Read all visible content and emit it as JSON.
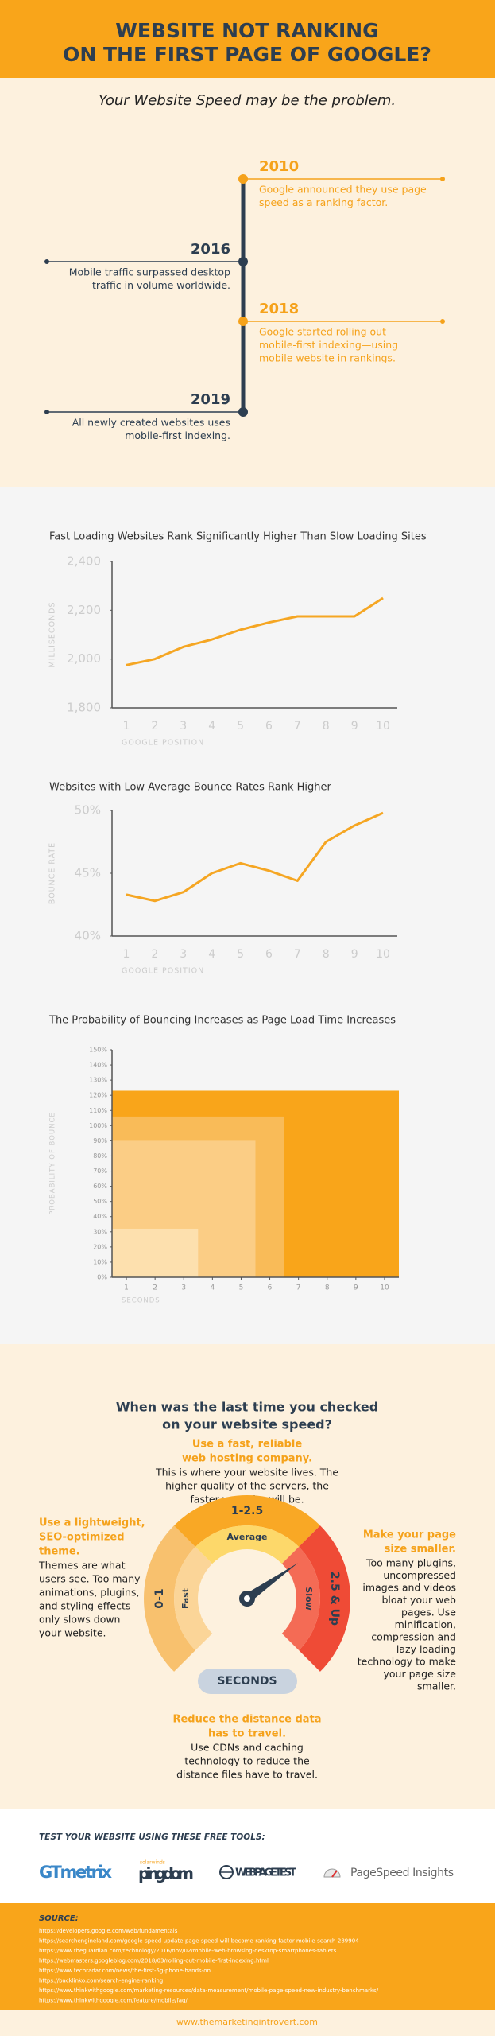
{
  "header": {
    "title": [
      "WEBSITE NOT RANKING",
      "ON THE FIRST PAGE OF GOOGLE?"
    ]
  },
  "intro": {
    "subtitle": "Your Website Speed may be the problem.",
    "timeline": [
      {
        "year": "2010",
        "text": [
          "Google announced they use page",
          "speed as a ranking factor."
        ]
      },
      {
        "year": "2016",
        "text": [
          "Mobile traffic surpassed desktop",
          "traffic in volume worldwide."
        ]
      },
      {
        "year": "2018",
        "text": [
          "Google started rolling out",
          "mobile-first indexing—using",
          "mobile website in rankings."
        ]
      },
      {
        "year": "2019",
        "text": [
          "All newly created websites uses",
          "mobile-first indexing."
        ]
      }
    ]
  },
  "chart_data": [
    {
      "type": "line",
      "title": "Fast Loading Websites Rank Significantly Higher Than Slow Loading Sites",
      "y_label": "MILLISECONDS",
      "x_label": "GOOGLE POSITION",
      "categories": [
        "1",
        "2",
        "3",
        "4",
        "5",
        "6",
        "7",
        "8",
        "9",
        "10"
      ],
      "values": [
        1975,
        2000,
        2050,
        2080,
        2120,
        2150,
        2175,
        2175,
        2175,
        2250
      ],
      "color": "#f5a623",
      "ylim": [
        1800,
        2400
      ],
      "yticks": [
        {
          "value": 1800,
          "label": "1,800"
        },
        {
          "value": 2000,
          "label": "2,000"
        },
        {
          "value": 2200,
          "label": "2,200"
        },
        {
          "value": 2400,
          "label": "2,400"
        }
      ],
      "grid": false
    },
    {
      "type": "line",
      "title": "Websites with Low Average Bounce Rates Rank Higher",
      "y_label": "BOUNCE RATE",
      "x_label": "GOOGLE POSITION",
      "categories": [
        "1",
        "2",
        "3",
        "4",
        "5",
        "6",
        "7",
        "8",
        "9",
        "10"
      ],
      "values": [
        43.3,
        42.8,
        43.5,
        45.0,
        45.8,
        45.2,
        44.4,
        47.5,
        48.8,
        49.8
      ],
      "color": "#f5a623",
      "ylim": [
        40,
        50
      ],
      "yticks": [
        {
          "value": 40,
          "label": "40%"
        },
        {
          "value": 45,
          "label": "45%"
        },
        {
          "value": 50,
          "label": "50%"
        }
      ],
      "grid": false
    },
    {
      "type": "bar",
      "title": "The Probability of Bouncing Increases as Page Load Time Increases",
      "y_label": "PROBABILITY OF BOUNCE",
      "x_label": "SECONDS",
      "x": [
        3,
        5,
        6,
        10
      ],
      "values": [
        32,
        90,
        106,
        123
      ],
      "colors": [
        "#fde0ae",
        "#fbcd85",
        "#f9bb58",
        "#f9a51a"
      ],
      "xlim": [
        0.5,
        10.5
      ],
      "xticks": [
        1,
        2,
        3,
        4,
        5,
        6,
        7,
        8,
        9,
        10
      ],
      "ylim": [
        0,
        150
      ],
      "yticks": [
        {
          "value": 0,
          "label": "0%"
        },
        {
          "value": 10,
          "label": "10%"
        },
        {
          "value": 20,
          "label": "20%"
        },
        {
          "value": 30,
          "label": "30%"
        },
        {
          "value": 40,
          "label": "40%"
        },
        {
          "value": 50,
          "label": "50%"
        },
        {
          "value": 60,
          "label": "60%"
        },
        {
          "value": 70,
          "label": "70%"
        },
        {
          "value": 80,
          "label": "80%"
        },
        {
          "value": 90,
          "label": "90%"
        },
        {
          "value": 100,
          "label": "100%"
        },
        {
          "value": 110,
          "label": "110%"
        },
        {
          "value": 120,
          "label": "120%"
        },
        {
          "value": 130,
          "label": "130%"
        },
        {
          "value": 140,
          "label": "140%"
        },
        {
          "value": 150,
          "label": "150%"
        }
      ],
      "grid": false
    }
  ],
  "speed": {
    "title": [
      "When was the last time you checked",
      "on your website speed?"
    ],
    "tips": [
      {
        "heading": [
          "Use a fast, reliable",
          "web hosting company."
        ],
        "body": [
          "This is where your website lives. The",
          "higher quality of the servers, the",
          "faster your site will be."
        ]
      },
      {
        "heading": [
          "Use a lightweight,",
          "SEO-optimized",
          "theme."
        ],
        "body": [
          "Themes are what",
          "users see. Too many",
          "animations, plugins,",
          "and styling effects",
          "only slows down",
          "your website."
        ]
      },
      {
        "heading": [
          "Make your page",
          "size smaller."
        ],
        "body": [
          "Too many plugins,",
          "uncompressed",
          "images and videos",
          "bloat your web",
          "pages. Use",
          "minification,",
          "compression and",
          "lazy loading",
          "technology to make",
          "your page size",
          "smaller."
        ]
      },
      {
        "heading": [
          "Reduce the distance data",
          "has to travel."
        ],
        "body": [
          "Use CDNs and caching",
          "technology to reduce the",
          "distance files have to travel."
        ]
      }
    ],
    "gauge": {
      "segments": [
        {
          "range": "0-1",
          "label": "Fast"
        },
        {
          "range": "1-2.5",
          "label": "Average"
        },
        {
          "range": "2.5 & Up",
          "label": "Slow"
        }
      ],
      "unit": "SECONDS"
    }
  },
  "tools": {
    "heading": "TEST YOUR WEBSITE USING THESE FREE TOOLS:",
    "items": [
      {
        "name": "GTmetrix"
      },
      {
        "name": "pingdom",
        "brand": "solarwinds"
      },
      {
        "name": "WEBPAGETEST"
      },
      {
        "name": "PageSpeed Insights"
      }
    ]
  },
  "sources": {
    "heading": "SOURCE:",
    "links": [
      "https://developers.google.com/web/fundamentals",
      "https://searchengineland.com/google-speed-update-page-speed-will-become-ranking-factor-mobile-search-289904",
      "https://www.theguardian.com/technology/2016/nov/02/mobile-web-browsing-desktop-smartphones-tablets",
      "https://webmasters.googleblog.com/2018/03/rolling-out-mobile-first-indexing.html",
      "https://www.techradar.com/news/the-first-5g-phone-hands-on",
      "https://backlinko.com/search-engine-ranking",
      "https://www.thinkwithgoogle.com/marketing-resources/data-measurement/mobile-page-speed-new-industry-benchmarks/",
      "https://www.thinkwithgoogle.com/feature/mobile/faq/"
    ]
  },
  "footer": "www.themarketingintrovert.com"
}
